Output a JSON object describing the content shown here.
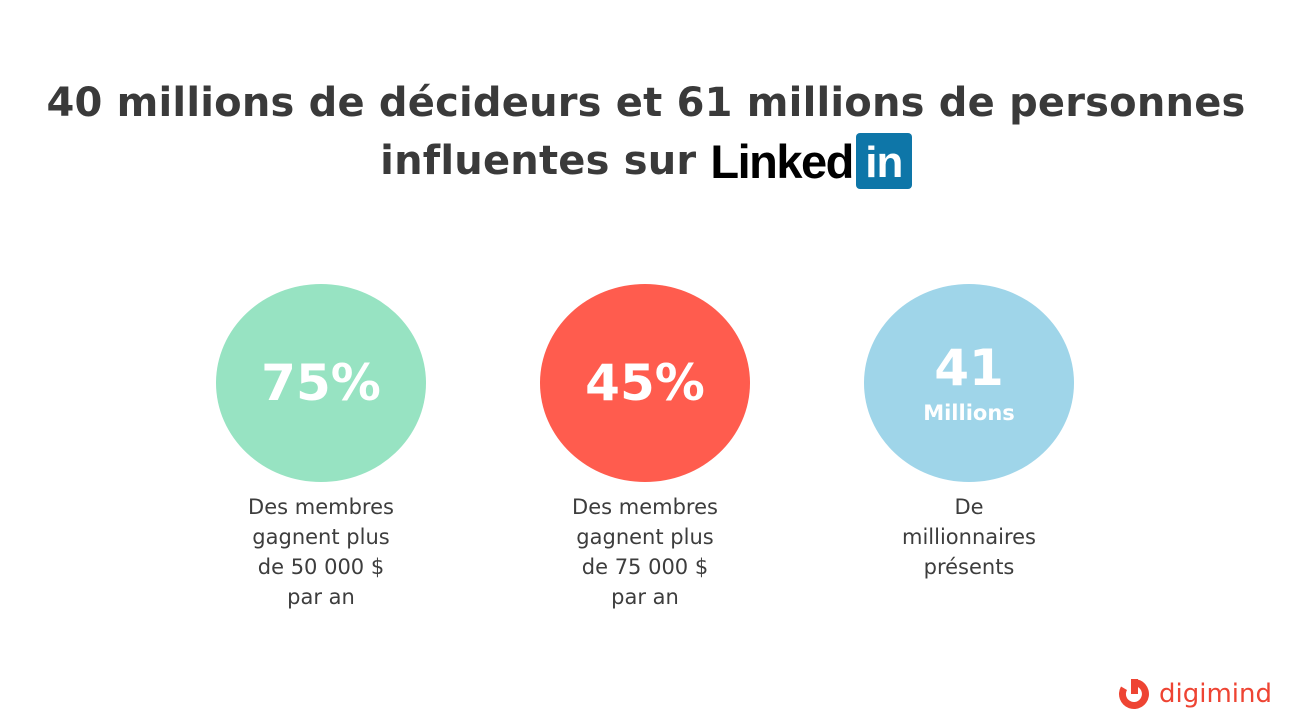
{
  "title": {
    "line1": "40 millions de décideurs et 61 millions de personnes",
    "line2": "influentes sur",
    "logo_word": "Linked",
    "logo_badge": "in",
    "logo_color": "#0e76a8"
  },
  "stats": [
    {
      "value": "75%",
      "sub": "",
      "color": "#97e3c2",
      "description": "Des membres\ngagnent plus\nde 50 000 $\npar an"
    },
    {
      "value": "45%",
      "sub": "",
      "color": "#ff5c4e",
      "description": "Des membres\ngagnent plus\nde 75 000 $\npar an"
    },
    {
      "value": "41",
      "sub": "Millions",
      "color": "#9fd5e9",
      "description": "De\nmillionnaires\nprésents"
    }
  ],
  "brand": {
    "name": "digimind",
    "color": "#ee4433"
  }
}
